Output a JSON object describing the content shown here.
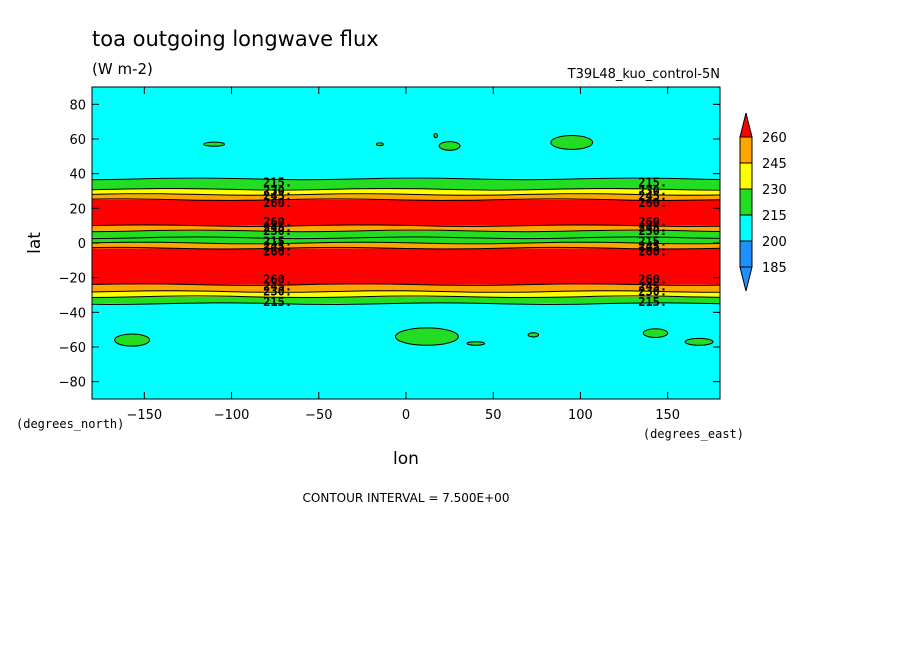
{
  "chart_data": {
    "type": "heatmap",
    "title": "toa outgoing longwave flux",
    "units": "(W m-2)",
    "run_label": "T39L48_kuo_control-5N",
    "xlabel": "lon",
    "ylabel": "lat",
    "x_units": "(degrees_east)",
    "y_units": "(degrees_north)",
    "xlim": [
      -180,
      180
    ],
    "ylim": [
      -90,
      90
    ],
    "x_ticks": [
      -150,
      -100,
      -50,
      0,
      50,
      100,
      150
    ],
    "y_ticks": [
      80,
      60,
      40,
      20,
      0,
      -20,
      -40,
      -60,
      -80
    ],
    "contour_interval_text": "CONTOUR INTERVAL = 7.500E+00",
    "colorbar": {
      "levels": [
        185,
        200,
        215,
        230,
        245,
        260
      ],
      "colors": [
        "#1e90ff",
        "#00ffff",
        "#22dd22",
        "#ffff00",
        "#ffa500",
        "#ff0000"
      ],
      "above_color": "#ff0000",
      "below_color": "#1e90ff"
    },
    "zonal_bands": [
      {
        "lat_min": -90,
        "lat_max": -35,
        "level": 200
      },
      {
        "lat_min": -35,
        "lat_max": -31,
        "level": 215
      },
      {
        "lat_min": -31,
        "lat_max": -28,
        "level": 230
      },
      {
        "lat_min": -28,
        "lat_max": -24,
        "level": 245
      },
      {
        "lat_min": -24,
        "lat_max": -3,
        "level": 260
      },
      {
        "lat_min": -3,
        "lat_max": 0,
        "level": 245
      },
      {
        "lat_min": 0,
        "lat_max": 3,
        "level": 215
      },
      {
        "lat_min": 3,
        "lat_max": 7,
        "level": 215
      },
      {
        "lat_min": 7,
        "lat_max": 10,
        "level": 245
      },
      {
        "lat_min": 10,
        "lat_max": 25,
        "level": 260
      },
      {
        "lat_min": 25,
        "lat_max": 28,
        "level": 245
      },
      {
        "lat_min": 28,
        "lat_max": 31,
        "level": 230
      },
      {
        "lat_min": 31,
        "lat_max": 37,
        "level": 215
      },
      {
        "lat_min": 37,
        "lat_max": 90,
        "level": 200
      }
    ],
    "contour_line_labels": [
      {
        "text": "215.",
        "lat": 35
      },
      {
        "text": "230.",
        "lat": 30
      },
      {
        "text": "245.",
        "lat": 27
      },
      {
        "text": "260.",
        "lat": 23
      },
      {
        "text": "260.",
        "lat": 12
      },
      {
        "text": "245.",
        "lat": 9
      },
      {
        "text": "230.",
        "lat": 7
      },
      {
        "text": "215.",
        "lat": 1
      },
      {
        "text": "245.",
        "lat": -2
      },
      {
        "text": "260.",
        "lat": -5
      },
      {
        "text": "260.",
        "lat": -21
      },
      {
        "text": "245.",
        "lat": -25
      },
      {
        "text": "230.",
        "lat": -28
      },
      {
        "text": "215.",
        "lat": -34
      }
    ],
    "label_columns_lon": [
      -75,
      140
    ],
    "patches_level_215": [
      {
        "lon": -110,
        "lat": 57,
        "rx": 6,
        "ry": 1.2
      },
      {
        "lon": -15,
        "lat": 57,
        "rx": 2,
        "ry": 0.8
      },
      {
        "lon": 17,
        "lat": 62,
        "rx": 1,
        "ry": 1.2
      },
      {
        "lon": 25,
        "lat": 56,
        "rx": 6,
        "ry": 2.5
      },
      {
        "lon": 95,
        "lat": 58,
        "rx": 12,
        "ry": 4
      },
      {
        "lon": -157,
        "lat": -56,
        "rx": 10,
        "ry": 3.5
      },
      {
        "lon": 12,
        "lat": -54,
        "rx": 18,
        "ry": 5
      },
      {
        "lon": 40,
        "lat": -58,
        "rx": 5,
        "ry": 1
      },
      {
        "lon": 73,
        "lat": -53,
        "rx": 3,
        "ry": 1.2
      },
      {
        "lon": 143,
        "lat": -52,
        "rx": 7,
        "ry": 2.5
      },
      {
        "lon": 168,
        "lat": -57,
        "rx": 8,
        "ry": 2
      }
    ]
  }
}
